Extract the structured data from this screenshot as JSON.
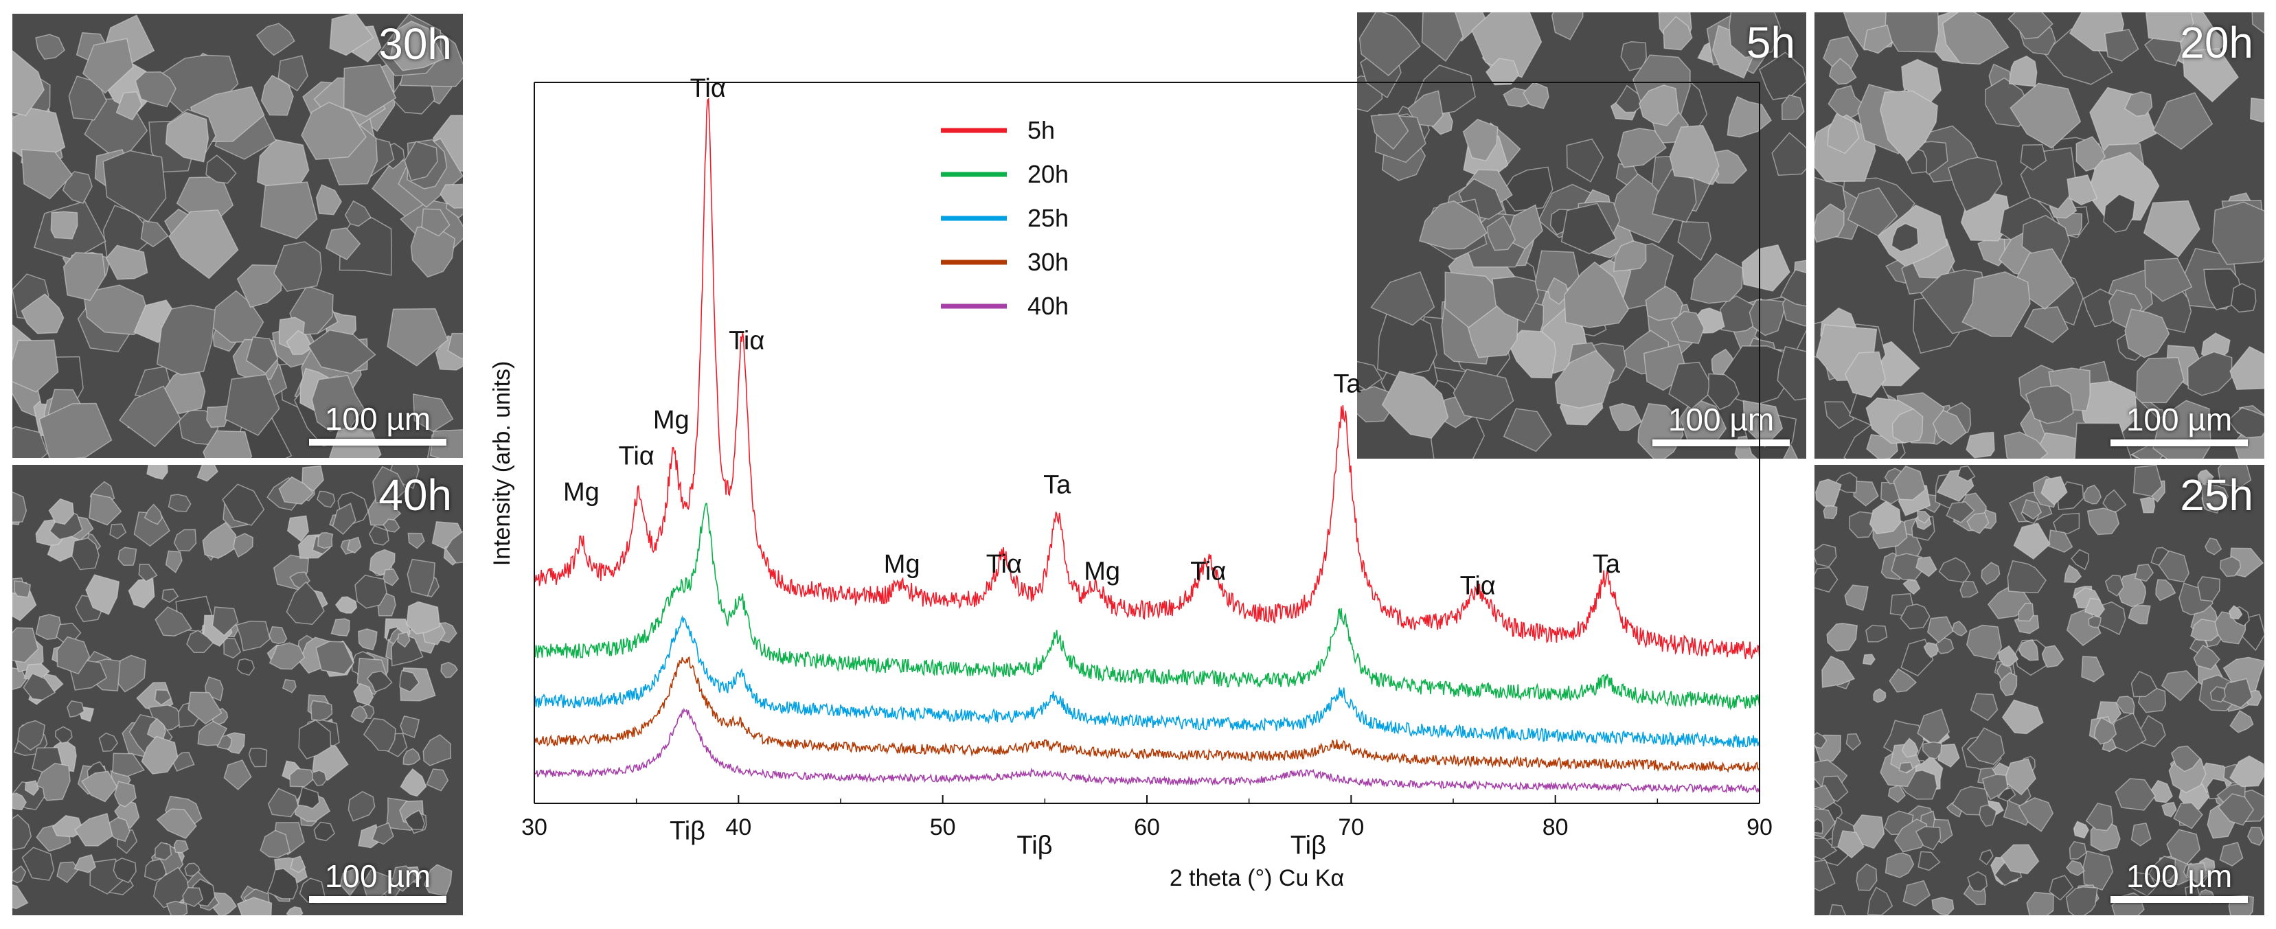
{
  "sem_panels": {
    "p30": {
      "label": "30h",
      "scale": "100 µm"
    },
    "p40": {
      "label": "40h",
      "scale": "100 µm"
    },
    "p5": {
      "label": "5h",
      "scale": "100 µm"
    },
    "p20": {
      "label": "20h",
      "scale": "100 µm"
    },
    "p25": {
      "label": "25h",
      "scale": "100 µm"
    }
  },
  "chart_data": {
    "type": "line",
    "title": "",
    "xlabel": "2 theta (°) Cu Kα",
    "ylabel": "Intensity (arb. units)",
    "xlim": [
      30,
      90
    ],
    "ylim": [
      0,
      100
    ],
    "yticks_shown": false,
    "x_ticks": [
      30,
      40,
      50,
      60,
      70,
      80,
      90
    ],
    "legend_position": "top-center",
    "legend": [
      "5h",
      "20h",
      "25h",
      "30h",
      "40h"
    ],
    "series": [
      {
        "name": "5h",
        "color": "#ef1c2a",
        "baseline_start": 31,
        "baseline_end": 21,
        "peaks": [
          {
            "x": 32.3,
            "h": 5,
            "w": 0.35
          },
          {
            "x": 35.1,
            "h": 11,
            "w": 0.4
          },
          {
            "x": 36.8,
            "h": 15,
            "w": 0.4
          },
          {
            "x": 38.5,
            "h": 65,
            "w": 0.35
          },
          {
            "x": 40.2,
            "h": 33,
            "w": 0.35
          },
          {
            "x": 48.0,
            "h": 2,
            "w": 0.5
          },
          {
            "x": 53.0,
            "h": 7,
            "w": 0.5
          },
          {
            "x": 55.6,
            "h": 13,
            "w": 0.4
          },
          {
            "x": 57.5,
            "h": 3,
            "w": 0.4
          },
          {
            "x": 63.0,
            "h": 8,
            "w": 0.7
          },
          {
            "x": 69.6,
            "h": 30,
            "w": 0.6
          },
          {
            "x": 76.2,
            "h": 6,
            "w": 0.8
          },
          {
            "x": 82.5,
            "h": 9,
            "w": 0.6
          }
        ]
      },
      {
        "name": "20h",
        "color": "#0cb14b",
        "baseline_start": 21,
        "baseline_end": 14,
        "peaks": [
          {
            "x": 37.0,
            "h": 8,
            "w": 1.0
          },
          {
            "x": 38.4,
            "h": 18,
            "w": 0.45
          },
          {
            "x": 40.1,
            "h": 7,
            "w": 0.4
          },
          {
            "x": 55.6,
            "h": 5,
            "w": 0.5
          },
          {
            "x": 69.5,
            "h": 10,
            "w": 0.6
          },
          {
            "x": 82.5,
            "h": 2,
            "w": 0.6
          }
        ]
      },
      {
        "name": "25h",
        "color": "#00a0e3",
        "baseline_start": 14,
        "baseline_end": 8.5,
        "peaks": [
          {
            "x": 37.3,
            "h": 12,
            "w": 0.9
          },
          {
            "x": 40.1,
            "h": 4,
            "w": 0.4
          },
          {
            "x": 55.5,
            "h": 3,
            "w": 0.6
          },
          {
            "x": 69.5,
            "h": 5,
            "w": 0.7
          }
        ]
      },
      {
        "name": "30h",
        "color": "#b23a05",
        "baseline_start": 8.5,
        "baseline_end": 5,
        "peaks": [
          {
            "x": 37.4,
            "h": 12,
            "w": 1.0
          },
          {
            "x": 40.0,
            "h": 2,
            "w": 0.5
          },
          {
            "x": 55.0,
            "h": 1,
            "w": 1.2
          },
          {
            "x": 69.3,
            "h": 2,
            "w": 1.0
          }
        ]
      },
      {
        "name": "40h",
        "color": "#a540a8",
        "baseline_start": 4,
        "baseline_end": 2,
        "peaks": [
          {
            "x": 37.4,
            "h": 9,
            "w": 0.9
          },
          {
            "x": 54.5,
            "h": 1,
            "w": 1.5
          },
          {
            "x": 67.8,
            "h": 1.5,
            "w": 1.5
          }
        ]
      }
    ],
    "annotations": [
      {
        "text": "Mg",
        "x": 32.3,
        "y": 42
      },
      {
        "text": "Tiα",
        "x": 35.0,
        "y": 47
      },
      {
        "text": "Mg",
        "x": 36.7,
        "y": 52
      },
      {
        "text": "Tiα",
        "x": 38.5,
        "y": 98
      },
      {
        "text": "Tiα",
        "x": 40.4,
        "y": 63
      },
      {
        "text": "Mg",
        "x": 48.0,
        "y": 32
      },
      {
        "text": "Tiα",
        "x": 53.0,
        "y": 32
      },
      {
        "text": "Ta",
        "x": 55.6,
        "y": 43
      },
      {
        "text": "Mg",
        "x": 57.8,
        "y": 31
      },
      {
        "text": "Tiα",
        "x": 63.0,
        "y": 31
      },
      {
        "text": "Ta",
        "x": 69.8,
        "y": 57
      },
      {
        "text": "Tiα",
        "x": 76.2,
        "y": 29
      },
      {
        "text": "Ta",
        "x": 82.5,
        "y": 32
      },
      {
        "text": "Tiβ",
        "x": 37.5,
        "y": -5
      },
      {
        "text": "Tiβ",
        "x": 54.5,
        "y": -7
      },
      {
        "text": "Tiβ",
        "x": 67.9,
        "y": -7
      }
    ]
  }
}
